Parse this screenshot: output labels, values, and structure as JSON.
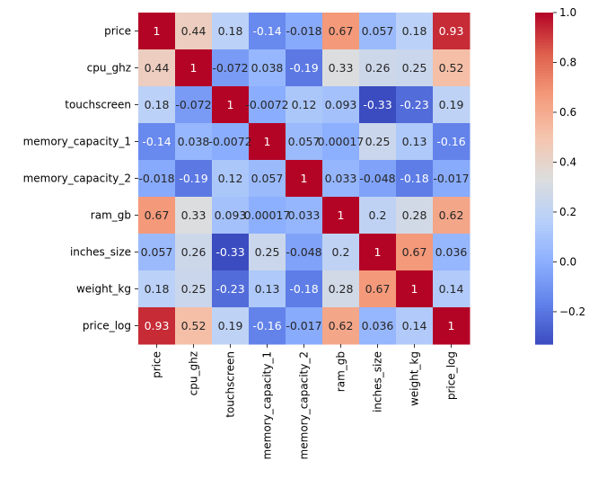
{
  "chart_data": {
    "type": "heatmap",
    "title": "",
    "xlabel": "",
    "ylabel": "",
    "rows": [
      "price",
      "cpu_ghz",
      "touchscreen",
      "memory_capacity_1",
      "memory_capacity_2",
      "ram_gb",
      "inches_size",
      "weight_kg",
      "price_log"
    ],
    "columns": [
      "price",
      "cpu_ghz",
      "touchscreen",
      "memory_capacity_1",
      "memory_capacity_2",
      "ram_gb",
      "inches_size",
      "weight_kg",
      "price_log"
    ],
    "values": [
      [
        1,
        0.44,
        0.18,
        -0.14,
        -0.018,
        0.67,
        0.057,
        0.18,
        0.93
      ],
      [
        0.44,
        1,
        -0.072,
        0.038,
        -0.19,
        0.33,
        0.26,
        0.25,
        0.52
      ],
      [
        0.18,
        -0.072,
        1,
        -0.0072,
        0.12,
        0.093,
        -0.33,
        -0.23,
        0.19
      ],
      [
        -0.14,
        0.038,
        -0.0072,
        1,
        0.057,
        0.00017,
        0.25,
        0.13,
        -0.16
      ],
      [
        -0.018,
        -0.19,
        0.12,
        0.057,
        1,
        0.033,
        -0.048,
        -0.18,
        -0.017
      ],
      [
        0.67,
        0.33,
        0.093,
        0.00017,
        0.033,
        1,
        0.2,
        0.28,
        0.62
      ],
      [
        0.057,
        0.26,
        -0.33,
        0.25,
        -0.048,
        0.2,
        1,
        0.67,
        0.036
      ],
      [
        0.18,
        0.25,
        -0.23,
        0.13,
        -0.18,
        0.28,
        0.67,
        1,
        0.14
      ],
      [
        0.93,
        0.52,
        0.19,
        -0.16,
        -0.017,
        0.62,
        0.036,
        0.14,
        1
      ]
    ],
    "annotations": [
      [
        "1",
        "0.44",
        "0.18",
        "-0.14",
        "-0.018",
        "0.67",
        "0.057",
        "0.18",
        "0.93"
      ],
      [
        "0.44",
        "1",
        "-0.072",
        "0.038",
        "-0.19",
        "0.33",
        "0.26",
        "0.25",
        "0.52"
      ],
      [
        "0.18",
        "-0.072",
        "1",
        "-0.0072",
        "0.12",
        "0.093",
        "-0.33",
        "-0.23",
        "0.19"
      ],
      [
        "-0.14",
        "0.038",
        "-0.0072",
        "1",
        "0.057",
        "0.00017",
        "0.25",
        "0.13",
        "-0.16"
      ],
      [
        "-0.018",
        "-0.19",
        "0.12",
        "0.057",
        "1",
        "0.033",
        "-0.048",
        "-0.18",
        "-0.017"
      ],
      [
        "0.67",
        "0.33",
        "0.093",
        "0.00017",
        "0.033",
        "1",
        "0.2",
        "0.28",
        "0.62"
      ],
      [
        "0.057",
        "0.26",
        "-0.33",
        "0.25",
        "-0.048",
        "0.2",
        "1",
        "0.67",
        "0.036"
      ],
      [
        "0.18",
        "0.25",
        "-0.23",
        "0.13",
        "-0.18",
        "0.28",
        "0.67",
        "1",
        "0.14"
      ],
      [
        "0.93",
        "0.52",
        "0.19",
        "-0.16",
        "-0.017",
        "0.62",
        "0.036",
        "0.14",
        "1"
      ]
    ],
    "colormap": "coolwarm",
    "colorbar": {
      "vmin": -0.33,
      "vmax": 1.0,
      "ticks": [
        -0.2,
        0.0,
        0.2,
        0.4,
        0.6,
        0.8,
        1.0
      ],
      "tick_labels": [
        "−0.2",
        "0.0",
        "0.2",
        "0.4",
        "0.6",
        "0.8",
        "1.0"
      ],
      "location": "right"
    },
    "grid": false,
    "legend": "none"
  }
}
